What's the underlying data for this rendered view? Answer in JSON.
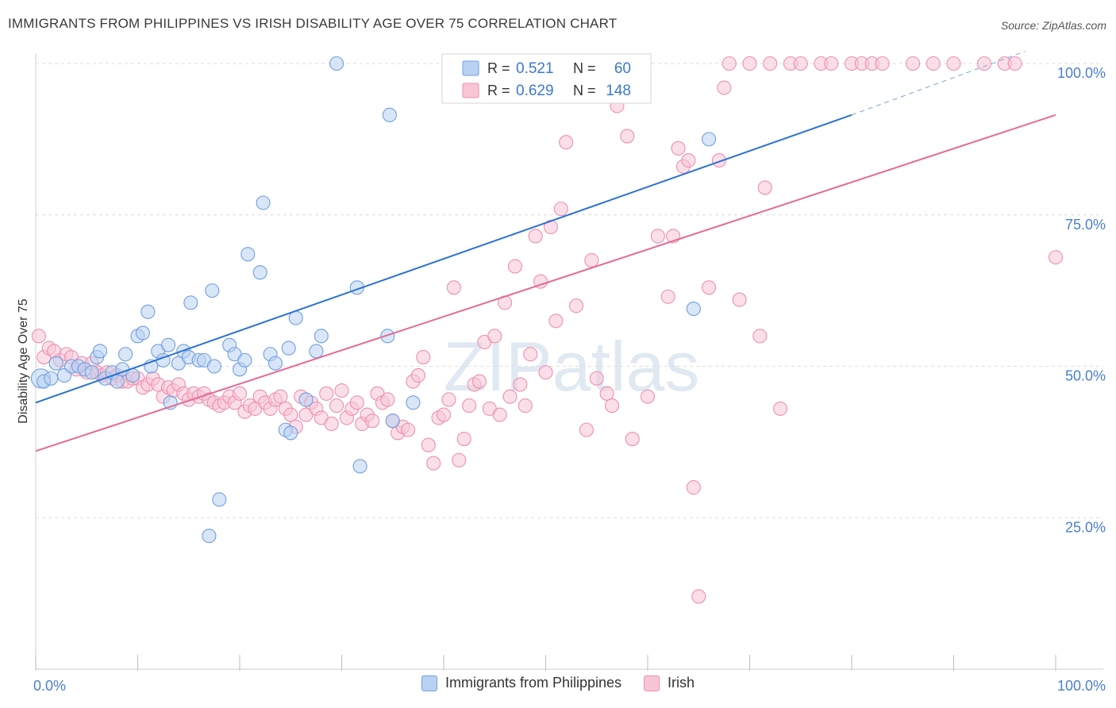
{
  "header": {
    "title": "IMMIGRANTS FROM PHILIPPINES VS IRISH DISABILITY AGE OVER 75 CORRELATION CHART",
    "source": "Source: ZipAtlas.com"
  },
  "watermark": "ZIPatlas",
  "chart_data": {
    "type": "scatter",
    "ylabel": "Disability Age Over 75",
    "xlim": [
      0,
      100
    ],
    "ylim": [
      0,
      100
    ],
    "x_tick_labels": [
      "0.0%",
      "100.0%"
    ],
    "y_tick_labels": [
      "25.0%",
      "50.0%",
      "75.0%",
      "100.0%"
    ],
    "y_ticks": [
      25,
      50,
      75,
      100
    ],
    "grid": true,
    "legend_top": [
      {
        "r_label": "R =",
        "r_value": "0.521",
        "n_label": "N =",
        "n_value": "60"
      },
      {
        "r_label": "R =",
        "r_value": "0.629",
        "n_label": "N =",
        "n_value": "148"
      }
    ],
    "series": [
      {
        "name": "Immigrants from Philippines",
        "color": "#6f9fe0",
        "fill": "#b9d1f3",
        "line_color": "#2b72d0",
        "trend": {
          "x0": 0,
          "y0": 44,
          "x1": 80,
          "y1": 91.5,
          "dash_to_x": 97,
          "dash_to_y": 102
        },
        "points": [
          [
            0.5,
            48
          ],
          [
            0.8,
            47.5
          ],
          [
            1.5,
            48
          ],
          [
            2,
            50.5
          ],
          [
            2.8,
            48.5
          ],
          [
            3.5,
            50
          ],
          [
            4.2,
            50
          ],
          [
            4.8,
            49.5
          ],
          [
            5.5,
            49
          ],
          [
            6,
            51.5
          ],
          [
            6.3,
            52.5
          ],
          [
            6.8,
            48
          ],
          [
            7.5,
            49
          ],
          [
            8,
            47.5
          ],
          [
            8.5,
            49.5
          ],
          [
            8.8,
            52
          ],
          [
            9.5,
            48.5
          ],
          [
            10,
            55
          ],
          [
            10.5,
            55.5
          ],
          [
            11,
            59
          ],
          [
            11.3,
            50
          ],
          [
            12,
            52.5
          ],
          [
            12.5,
            51
          ],
          [
            13,
            53.5
          ],
          [
            13.2,
            44
          ],
          [
            14,
            50.5
          ],
          [
            14.5,
            52.5
          ],
          [
            15,
            51.5
          ],
          [
            15.2,
            60.5
          ],
          [
            16,
            51
          ],
          [
            16.5,
            51
          ],
          [
            17.3,
            62.5
          ],
          [
            17.5,
            50
          ],
          [
            18,
            28
          ],
          [
            17,
            22
          ],
          [
            19,
            53.5
          ],
          [
            19.5,
            52
          ],
          [
            20,
            49.5
          ],
          [
            20.5,
            51
          ],
          [
            20.8,
            68.5
          ],
          [
            22,
            65.5
          ],
          [
            22.3,
            77
          ],
          [
            23,
            52
          ],
          [
            23.5,
            50.5
          ],
          [
            24.8,
            53
          ],
          [
            25.5,
            58
          ],
          [
            24.5,
            39.5
          ],
          [
            25,
            39
          ],
          [
            26.5,
            44.5
          ],
          [
            27.5,
            52.5
          ],
          [
            28,
            55
          ],
          [
            29.5,
            100
          ],
          [
            31.5,
            63
          ],
          [
            31.8,
            33.5
          ],
          [
            34.5,
            55
          ],
          [
            34.7,
            91.5
          ],
          [
            35,
            41
          ],
          [
            64.5,
            59.5
          ],
          [
            66,
            87.5
          ],
          [
            37,
            44
          ]
        ]
      },
      {
        "name": "Irish",
        "color": "#ee8fb0",
        "fill": "#f8c5d5",
        "line_color": "#e46a94",
        "trend": {
          "x0": 0,
          "y0": 36,
          "x1": 100,
          "y1": 91.5
        },
        "points": [
          [
            0.3,
            55
          ],
          [
            0.8,
            51.5
          ],
          [
            1.3,
            53
          ],
          [
            1.8,
            52.5
          ],
          [
            2.4,
            51
          ],
          [
            3,
            52
          ],
          [
            3.5,
            51.5
          ],
          [
            4,
            49.5
          ],
          [
            4.5,
            50.5
          ],
          [
            5,
            49
          ],
          [
            5.5,
            50.5
          ],
          [
            6,
            49
          ],
          [
            6.5,
            48.5
          ],
          [
            7,
            49
          ],
          [
            7.5,
            48
          ],
          [
            8,
            48.5
          ],
          [
            8.5,
            47.5
          ],
          [
            9,
            47.5
          ],
          [
            9.5,
            48
          ],
          [
            10,
            48
          ],
          [
            10.5,
            46.5
          ],
          [
            11,
            47
          ],
          [
            11.5,
            48
          ],
          [
            12,
            47
          ],
          [
            12.5,
            45
          ],
          [
            13,
            46.5
          ],
          [
            13.5,
            46
          ],
          [
            14,
            47
          ],
          [
            14.5,
            45.5
          ],
          [
            15,
            44.5
          ],
          [
            15.5,
            45.5
          ],
          [
            16,
            45
          ],
          [
            16.5,
            45.5
          ],
          [
            17,
            44.5
          ],
          [
            17.5,
            44
          ],
          [
            18,
            43.5
          ],
          [
            18.5,
            44
          ],
          [
            19,
            45
          ],
          [
            19.5,
            44
          ],
          [
            20,
            45.5
          ],
          [
            20.5,
            42.5
          ],
          [
            21,
            43.5
          ],
          [
            21.5,
            43
          ],
          [
            22,
            45
          ],
          [
            22.5,
            44
          ],
          [
            23,
            43
          ],
          [
            23.5,
            44.5
          ],
          [
            24,
            45
          ],
          [
            24.5,
            43
          ],
          [
            25,
            42
          ],
          [
            25.5,
            40
          ],
          [
            26,
            45
          ],
          [
            26.5,
            42
          ],
          [
            27,
            44
          ],
          [
            27.5,
            43
          ],
          [
            28,
            41.5
          ],
          [
            28.5,
            45.5
          ],
          [
            29,
            40.5
          ],
          [
            29.5,
            43.5
          ],
          [
            30,
            46
          ],
          [
            30.5,
            41.5
          ],
          [
            31,
            43
          ],
          [
            31.5,
            44
          ],
          [
            32,
            40.5
          ],
          [
            32.5,
            42
          ],
          [
            33,
            41
          ],
          [
            33.5,
            45.5
          ],
          [
            34,
            44
          ],
          [
            34.5,
            44.5
          ],
          [
            35,
            41
          ],
          [
            35.5,
            39
          ],
          [
            36,
            40
          ],
          [
            36.5,
            39.5
          ],
          [
            37,
            47.5
          ],
          [
            37.5,
            48.5
          ],
          [
            38,
            51.5
          ],
          [
            38.5,
            37
          ],
          [
            39,
            34
          ],
          [
            39.5,
            41.5
          ],
          [
            40,
            42
          ],
          [
            40.5,
            44.5
          ],
          [
            41,
            63
          ],
          [
            41.5,
            34.5
          ],
          [
            42,
            38
          ],
          [
            42.5,
            43.5
          ],
          [
            43,
            47
          ],
          [
            43.5,
            47.5
          ],
          [
            44,
            54
          ],
          [
            44.5,
            43
          ],
          [
            45,
            55
          ],
          [
            45.5,
            42
          ],
          [
            46,
            60.5
          ],
          [
            46.5,
            45
          ],
          [
            47,
            66.5
          ],
          [
            47.5,
            47
          ],
          [
            48,
            43.5
          ],
          [
            48.5,
            52
          ],
          [
            49,
            71.5
          ],
          [
            49.5,
            64
          ],
          [
            50,
            49
          ],
          [
            50.5,
            73
          ],
          [
            51,
            57.5
          ],
          [
            51.5,
            76
          ],
          [
            52,
            87
          ],
          [
            53,
            60
          ],
          [
            54,
            39.5
          ],
          [
            54.5,
            67.5
          ],
          [
            55,
            48
          ],
          [
            56,
            45.5
          ],
          [
            56.5,
            43.5
          ],
          [
            57,
            93
          ],
          [
            58,
            88
          ],
          [
            58.5,
            38
          ],
          [
            59,
            100
          ],
          [
            60,
            45
          ],
          [
            61,
            71.5
          ],
          [
            62,
            61.5
          ],
          [
            62.5,
            71.5
          ],
          [
            63,
            86
          ],
          [
            63.5,
            83
          ],
          [
            64,
            84
          ],
          [
            64.5,
            30
          ],
          [
            65,
            12
          ],
          [
            66,
            63
          ],
          [
            67,
            84
          ],
          [
            67.5,
            96
          ],
          [
            68,
            100
          ],
          [
            69,
            61
          ],
          [
            70,
            100
          ],
          [
            71,
            55
          ],
          [
            71.5,
            79.5
          ],
          [
            72,
            100
          ],
          [
            73,
            43
          ],
          [
            74,
            100
          ],
          [
            75,
            100
          ],
          [
            77,
            100
          ],
          [
            78,
            100
          ],
          [
            80,
            100
          ],
          [
            81,
            100
          ],
          [
            82,
            100
          ],
          [
            83,
            100
          ],
          [
            86,
            100
          ],
          [
            88,
            100
          ],
          [
            90,
            100
          ],
          [
            93,
            100
          ],
          [
            95,
            100
          ],
          [
            96,
            100
          ],
          [
            100,
            68
          ]
        ]
      }
    ]
  },
  "legend_bottom": [
    {
      "label": "Immigrants from Philippines",
      "color": "#b9d1f3",
      "border": "#6f9fe0"
    },
    {
      "label": "Irish",
      "color": "#f8c5d5",
      "border": "#ee8fb0"
    }
  ]
}
